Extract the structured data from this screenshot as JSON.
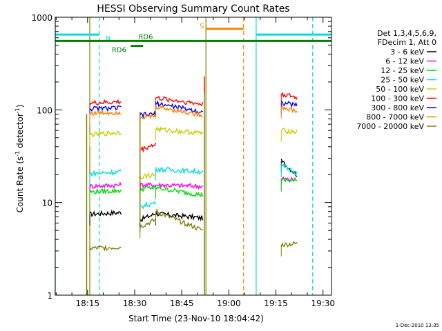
{
  "footer_date": "1-Dec-2010 13:35",
  "chart_data": {
    "type": "line",
    "title": "HESSI Observing Summary Count Rates",
    "xlabel": "Start Time (23-Nov-10 18:04:42)",
    "ylabel_main": "Count Rate (s",
    "ylabel_sup1": "-1",
    "ylabel_mid": " detector",
    "ylabel_sup2": "-1",
    "ylabel_end": ")",
    "y_scale": "log",
    "ylim": [
      1,
      1000
    ],
    "xlim_minutes": [
      0,
      88
    ],
    "x_ticks": [
      {
        "label": "18:15",
        "minute": 10.3
      },
      {
        "label": "18:30",
        "minute": 25.3
      },
      {
        "label": "18:45",
        "minute": 40.3
      },
      {
        "label": "19:00",
        "minute": 55.3
      },
      {
        "label": "19:15",
        "minute": 70.3
      },
      {
        "label": "19:30",
        "minute": 85.3
      }
    ],
    "y_ticks": [
      {
        "label": "1",
        "value": 1
      },
      {
        "label": "10",
        "value": 10
      },
      {
        "label": "100",
        "value": 100
      },
      {
        "label": "1000",
        "value": 1000
      }
    ],
    "legend": {
      "header": [
        "Det 1,3,4,5,6,9,",
        "FDecim 1, Att 0"
      ],
      "position": "right"
    },
    "series": [
      {
        "name": "3 - 6 keV",
        "color": "#000000",
        "segments": [
          [
            11,
            7.5,
            21,
            7.8
          ],
          [
            27,
            6.5,
            32,
            7.6
          ],
          [
            32,
            7.6,
            47,
            6.8
          ],
          [
            72,
            28,
            77,
            20
          ]
        ]
      },
      {
        "name": "6 - 12 keV",
        "color": "#ff00ff",
        "segments": [
          [
            11,
            15,
            21,
            15.5
          ],
          [
            27,
            15.5,
            32,
            15.5
          ],
          [
            32,
            15.5,
            47,
            15
          ],
          [
            72,
            18,
            77,
            17.5
          ]
        ]
      },
      {
        "name": "12 - 25 keV",
        "color": "#00dd00",
        "segments": [
          [
            11,
            13,
            21,
            13.5
          ],
          [
            27,
            14,
            32,
            14.5
          ],
          [
            32,
            14.5,
            47,
            12
          ],
          [
            72,
            17.5,
            77,
            17
          ]
        ]
      },
      {
        "name": "25 - 50 keV",
        "color": "#00dddd",
        "segments": [
          [
            11,
            20.5,
            21,
            21.5
          ],
          [
            27,
            9,
            32,
            10
          ],
          [
            32,
            23,
            47,
            21.5
          ],
          [
            72,
            25,
            77,
            21
          ]
        ]
      },
      {
        "name": "50 - 100 keV",
        "color": "#cccc00",
        "segments": [
          [
            11,
            54,
            21,
            57
          ],
          [
            27,
            19,
            32,
            20
          ],
          [
            32,
            62,
            47,
            56
          ],
          [
            72,
            60,
            77,
            58
          ]
        ]
      },
      {
        "name": "100 - 300 keV",
        "color": "#ff0000",
        "segments": [
          [
            11,
            118,
            21,
            122
          ],
          [
            27,
            37,
            32,
            43
          ],
          [
            32,
            135,
            47,
            115
          ],
          [
            72,
            150,
            77,
            135
          ]
        ]
      },
      {
        "name": "300 - 800 keV",
        "color": "#0000ff",
        "segments": [
          [
            11,
            103,
            21,
            105
          ],
          [
            27,
            88,
            32,
            90
          ],
          [
            32,
            118,
            47,
            95
          ],
          [
            72,
            120,
            77,
            112
          ]
        ]
      },
      {
        "name": "800 - 7000 keV",
        "color": "#ff8000",
        "segments": [
          [
            11,
            92,
            21,
            94
          ],
          [
            27,
            84,
            32,
            85
          ],
          [
            32,
            108,
            47,
            88
          ],
          [
            72,
            108,
            77,
            96
          ]
        ]
      },
      {
        "name": "7000 - 20000 keV",
        "color": "#808000",
        "segments": [
          [
            11,
            3.2,
            21,
            3.3
          ],
          [
            27,
            5.5,
            32,
            6.5
          ],
          [
            32,
            8,
            47,
            5
          ],
          [
            72,
            3.5,
            77,
            3.6
          ]
        ]
      }
    ],
    "spikes": [
      {
        "color": "#ff0000",
        "minute": 47.5,
        "from": 150,
        "to": 230
      },
      {
        "color": "#808000",
        "minute": 47.5,
        "from": 1,
        "to": 160
      },
      {
        "color": "#808000",
        "minute": 10,
        "from": 1,
        "to": 90
      },
      {
        "color": "#808000",
        "minute": 27,
        "from": 6,
        "to": 95
      }
    ],
    "flags": [
      {
        "label": "N",
        "color": "#00dddd",
        "y": 650,
        "segments": [
          [
            0,
            14
          ],
          [
            64,
            88
          ]
        ],
        "label_minute": 16
      },
      {
        "label": "S",
        "color": "#ff8000",
        "y": 750,
        "segments": [
          [
            48,
            60
          ]
        ],
        "label_minute": 46
      },
      {
        "label": "RD6",
        "color": "#008000",
        "y": 555,
        "segments": [
          [
            0,
            88
          ]
        ],
        "label_minute": null
      },
      {
        "label": "RD6",
        "color": "#008000",
        "y": 490,
        "segments": [
          [
            24,
            28
          ]
        ],
        "label_minute": 18
      }
    ],
    "vlines": [
      {
        "color": "#00dddd",
        "minute": 0,
        "dashed": false
      },
      {
        "color": "#00dddd",
        "minute": 14,
        "dashed": true
      },
      {
        "color": "#808000",
        "minute": 11,
        "dashed": false
      },
      {
        "color": "#808000",
        "minute": 48,
        "dashed": false
      },
      {
        "color": "#ff8000",
        "minute": 60,
        "dashed": true
      },
      {
        "color": "#00dddd",
        "minute": 64,
        "dashed": false
      },
      {
        "color": "#00dddd",
        "minute": 82,
        "dashed": true
      }
    ]
  }
}
